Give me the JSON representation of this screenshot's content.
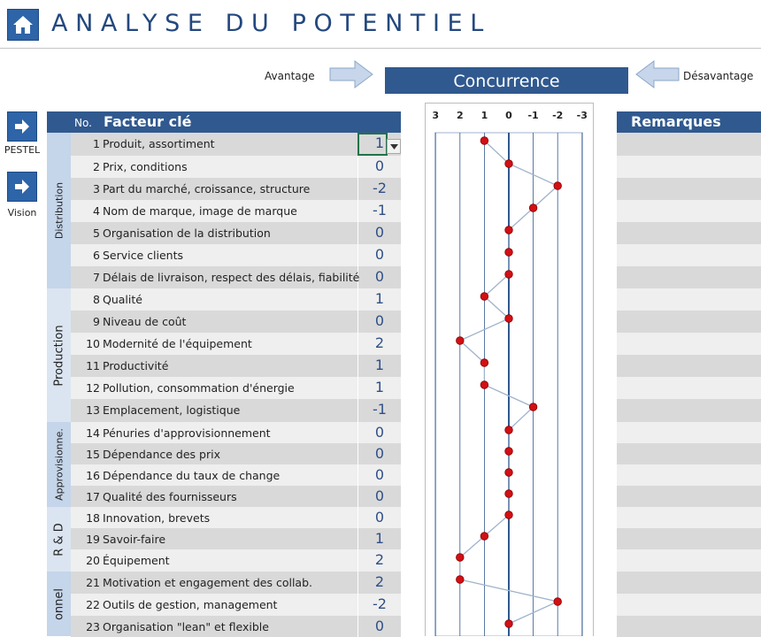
{
  "header": {
    "title": "ANALYSE DU POTENTIEL",
    "home_icon": "home-icon"
  },
  "competition": {
    "advantage_label": "Avantage",
    "disadvantage_label": "Désavantage",
    "banner": "Concurrence"
  },
  "nav": [
    {
      "label": "PESTEL",
      "icon": "arrow-right-icon"
    },
    {
      "label": "Vision",
      "icon": "arrow-right-icon"
    }
  ],
  "table": {
    "col_no": "No.",
    "col_factor": "Facteur clé",
    "groups": [
      {
        "name": "Distribution",
        "rows": 7
      },
      {
        "name": "Production",
        "rows": 6
      },
      {
        "name": "Approvisionne.",
        "rows": 4
      },
      {
        "name": "R & D",
        "rows": 3
      },
      {
        "name": "onnel",
        "rows": 3
      }
    ],
    "rows": [
      {
        "no": "1",
        "factor": "Produit, assortiment",
        "value": "1"
      },
      {
        "no": "2",
        "factor": "Prix, conditions",
        "value": "0"
      },
      {
        "no": "3",
        "factor": "Part du marché, croissance, structure",
        "value": "-2"
      },
      {
        "no": "4",
        "factor": "Nom de marque, image de marque",
        "value": "-1"
      },
      {
        "no": "5",
        "factor": "Organisation de la distribution",
        "value": "0"
      },
      {
        "no": "6",
        "factor": "Service clients",
        "value": "0"
      },
      {
        "no": "7",
        "factor": "Délais de livraison, respect des délais, fiabilité",
        "value": "0"
      },
      {
        "no": "8",
        "factor": "Qualité",
        "value": "1"
      },
      {
        "no": "9",
        "factor": "Niveau de coût",
        "value": "0"
      },
      {
        "no": "10",
        "factor": "Modernité de l'équipement",
        "value": "2"
      },
      {
        "no": "11",
        "factor": "Productivité",
        "value": "1"
      },
      {
        "no": "12",
        "factor": "Pollution, consommation d'énergie",
        "value": "1"
      },
      {
        "no": "13",
        "factor": "Emplacement, logistique",
        "value": "-1"
      },
      {
        "no": "14",
        "factor": "Pénuries d'approvisionnement",
        "value": "0"
      },
      {
        "no": "15",
        "factor": "Dépendance des prix",
        "value": "0"
      },
      {
        "no": "16",
        "factor": "Dépendance du taux de change",
        "value": "0"
      },
      {
        "no": "17",
        "factor": "Qualité des fournisseurs",
        "value": "0"
      },
      {
        "no": "18",
        "factor": "Innovation, brevets",
        "value": "0"
      },
      {
        "no": "19",
        "factor": "Savoir-faire",
        "value": "1"
      },
      {
        "no": "20",
        "factor": "Équipement",
        "value": "2"
      },
      {
        "no": "21",
        "factor": "Motivation et engagement des collab.",
        "value": "2"
      },
      {
        "no": "22",
        "factor": "Outils de gestion, management",
        "value": "-2"
      },
      {
        "no": "23",
        "factor": "Organisation \"lean\" et flexible",
        "value": "0"
      }
    ]
  },
  "remarks": {
    "header": "Remarques"
  },
  "chart_data": {
    "type": "line",
    "orientation": "vertical",
    "x_ticks": [
      "3",
      "2",
      "1",
      "0",
      "-1",
      "-2",
      "-3"
    ],
    "xlim": [
      3,
      -3
    ],
    "categories": [
      "1",
      "2",
      "3",
      "4",
      "5",
      "6",
      "7",
      "8",
      "9",
      "10",
      "11",
      "12",
      "13",
      "14",
      "15",
      "16",
      "17",
      "18",
      "19",
      "20",
      "21",
      "22",
      "23"
    ],
    "values": [
      1,
      0,
      -2,
      -1,
      0,
      0,
      0,
      1,
      0,
      2,
      1,
      1,
      -1,
      0,
      0,
      0,
      0,
      0,
      1,
      2,
      2,
      -2,
      0
    ],
    "grid": true,
    "colors": {
      "line": "#9fb3cc",
      "marker": "#d20f14",
      "axis": "#30598f",
      "grid": "#30598f"
    }
  },
  "colors": {
    "accent": "#30598f",
    "row_dark": "#d9d9d9",
    "row_light": "#efefef",
    "group_bg": "#c5d5ea",
    "group_bg_alt": "#dbe5f1",
    "value_text": "#2f4f86",
    "selection": "#217346"
  }
}
